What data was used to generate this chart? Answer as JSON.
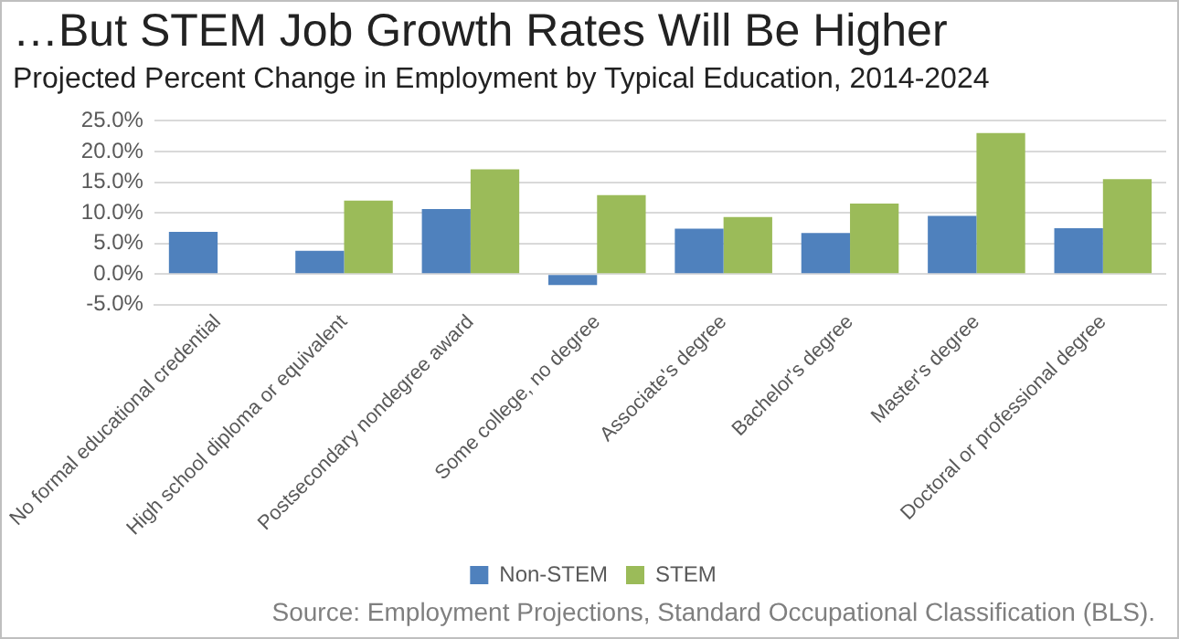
{
  "chart_data": {
    "type": "bar",
    "title": "…But STEM Job Growth Rates Will Be Higher",
    "subtitle": "Projected Percent Change in Employment by Typical Education, 2014-2024",
    "categories": [
      "No formal educational credential",
      "High school diploma or equivalent",
      "Postsecondary nondegree award",
      "Some college, no degree",
      "Associate's degree",
      "Bachelor's degree",
      "Master's degree",
      "Doctoral or professional degree"
    ],
    "series": [
      {
        "name": "Non-STEM",
        "color": "#4f81bd",
        "values": [
          6.9,
          3.8,
          10.6,
          -1.8,
          7.4,
          6.7,
          9.5,
          7.5
        ]
      },
      {
        "name": "STEM",
        "color": "#9bbb59",
        "values": [
          null,
          12.0,
          17.1,
          12.9,
          9.3,
          11.5,
          23.0,
          15.5
        ]
      }
    ],
    "ylim": [
      -5,
      25
    ],
    "yticks": [
      {
        "value": -5,
        "label": "-5.0%"
      },
      {
        "value": 0,
        "label": "0.0%"
      },
      {
        "value": 5,
        "label": "5.0%"
      },
      {
        "value": 10,
        "label": "10.0%"
      },
      {
        "value": 15,
        "label": "15.0%"
      },
      {
        "value": 20,
        "label": "20.0%"
      },
      {
        "value": 25,
        "label": "25.0%"
      }
    ],
    "grid": "y",
    "legend": "bottom",
    "annotations": [
      "Source: Employment Projections, Standard Occupational Classification (BLS)."
    ]
  }
}
